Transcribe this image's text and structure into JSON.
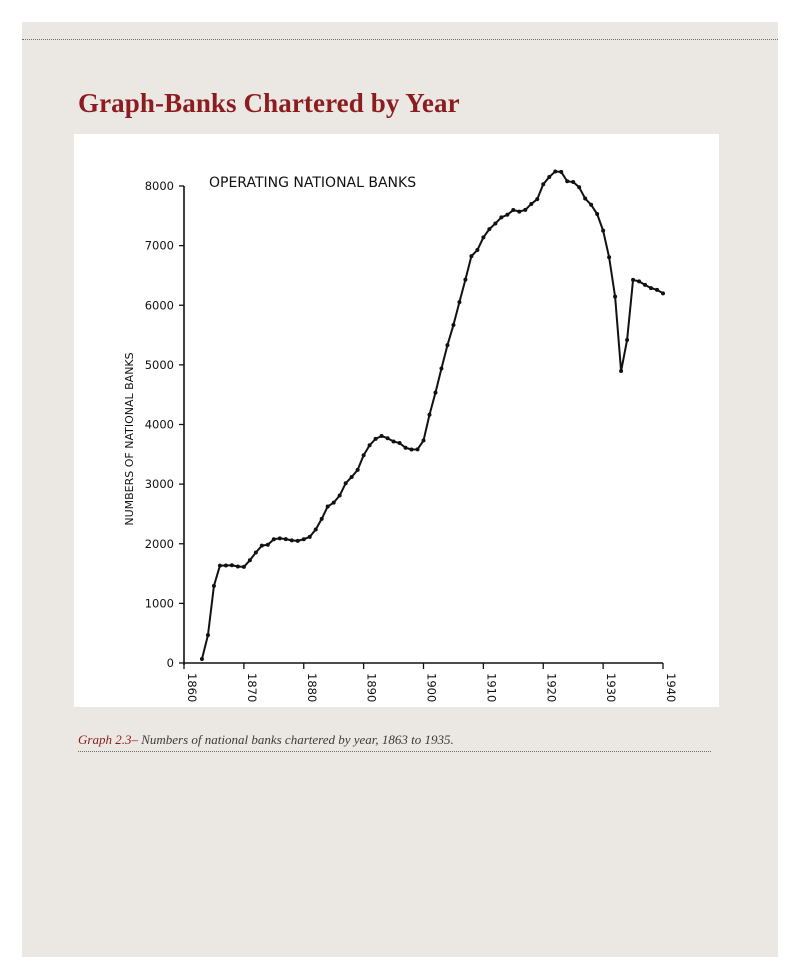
{
  "page": {
    "title": "Graph-Banks Chartered by Year",
    "caption_label": "Graph 2.3–",
    "caption_text": " Numbers of national banks chartered by year, 1863 to 1935."
  },
  "chart_data": {
    "type": "line",
    "title": "OPERATING NATIONAL BANKS",
    "xlabel": "",
    "ylabel": "NUMBERS OF NATIONAL BANKS",
    "xlim": [
      1860,
      1940
    ],
    "ylim": [
      0,
      8000
    ],
    "xticks": [
      1860,
      1870,
      1880,
      1890,
      1900,
      1910,
      1920,
      1930,
      1940
    ],
    "yticks": [
      0,
      1000,
      2000,
      3000,
      4000,
      5000,
      6000,
      7000,
      8000
    ],
    "grid": false,
    "legend": "none",
    "line_color": "#111111",
    "x": [
      1863,
      1864,
      1865,
      1866,
      1867,
      1868,
      1869,
      1870,
      1871,
      1872,
      1873,
      1874,
      1875,
      1876,
      1877,
      1878,
      1879,
      1880,
      1881,
      1882,
      1883,
      1884,
      1885,
      1886,
      1887,
      1888,
      1889,
      1890,
      1891,
      1892,
      1893,
      1894,
      1895,
      1896,
      1897,
      1898,
      1899,
      1900,
      1901,
      1902,
      1903,
      1904,
      1905,
      1906,
      1907,
      1908,
      1909,
      1910,
      1911,
      1912,
      1913,
      1914,
      1915,
      1916,
      1917,
      1918,
      1919,
      1920,
      1921,
      1922,
      1923,
      1924,
      1925,
      1926,
      1927,
      1928,
      1929,
      1930,
      1931,
      1932,
      1933,
      1934,
      1935,
      1936,
      1937,
      1938,
      1939,
      1940
    ],
    "y": [
      66,
      467,
      1294,
      1634,
      1636,
      1640,
      1619,
      1612,
      1723,
      1853,
      1968,
      1983,
      2076,
      2091,
      2078,
      2056,
      2048,
      2076,
      2115,
      2239,
      2417,
      2625,
      2689,
      2809,
      3014,
      3120,
      3239,
      3484,
      3652,
      3759,
      3807,
      3770,
      3715,
      3689,
      3610,
      3581,
      3583,
      3731,
      4163,
      4535,
      4939,
      5331,
      5668,
      6053,
      6429,
      6824,
      6926,
      7138,
      7277,
      7372,
      7473,
      7518,
      7597,
      7571,
      7599,
      7699,
      7779,
      8030,
      8150,
      8244,
      8236,
      8080,
      8066,
      7978,
      7790,
      7685,
      7530,
      7252,
      6805,
      6145,
      4897,
      5417,
      6425,
      6400,
      6341,
      6288,
      6258,
      6200
    ]
  }
}
